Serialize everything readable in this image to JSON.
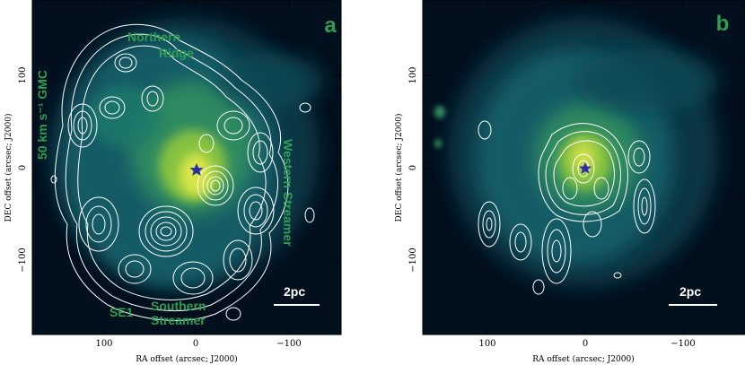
{
  "colors": {
    "background": "#02101e",
    "emission_mid": "#1f6f6e",
    "emission_high": "#7fbf3a",
    "emission_peak": "#d9e64a",
    "contour": "#ffffff",
    "label_green": "#2e9e55",
    "star": "#2b2ea8"
  },
  "panels": [
    {
      "id": "a",
      "panel_label": "a",
      "labels": {
        "northern_ridge_1": "Northern",
        "northern_ridge_2": "Ridge",
        "gmc": "50 km s⁻¹ GMC",
        "western_1": "Western Streamer",
        "se1": "SE1",
        "southern_1": "Southern",
        "southern_2": "Streamer"
      },
      "scalebar_label": "2pc",
      "xlabel": "RA offset (arcsec; J2000)",
      "ylabel": "DEC offset (arcsec; J2000)",
      "x_ticks": [
        "100",
        "0",
        "−100"
      ],
      "y_ticks": [
        "100",
        "0",
        "−100"
      ]
    },
    {
      "id": "b",
      "panel_label": "b",
      "scalebar_label": "2pc",
      "xlabel": "RA offset (arcsec; J2000)",
      "ylabel": "DEC offset (arcsec; J2000)",
      "x_ticks": [
        "100",
        "0",
        "−100"
      ],
      "y_ticks": [
        "100",
        "0",
        "−100"
      ]
    }
  ]
}
